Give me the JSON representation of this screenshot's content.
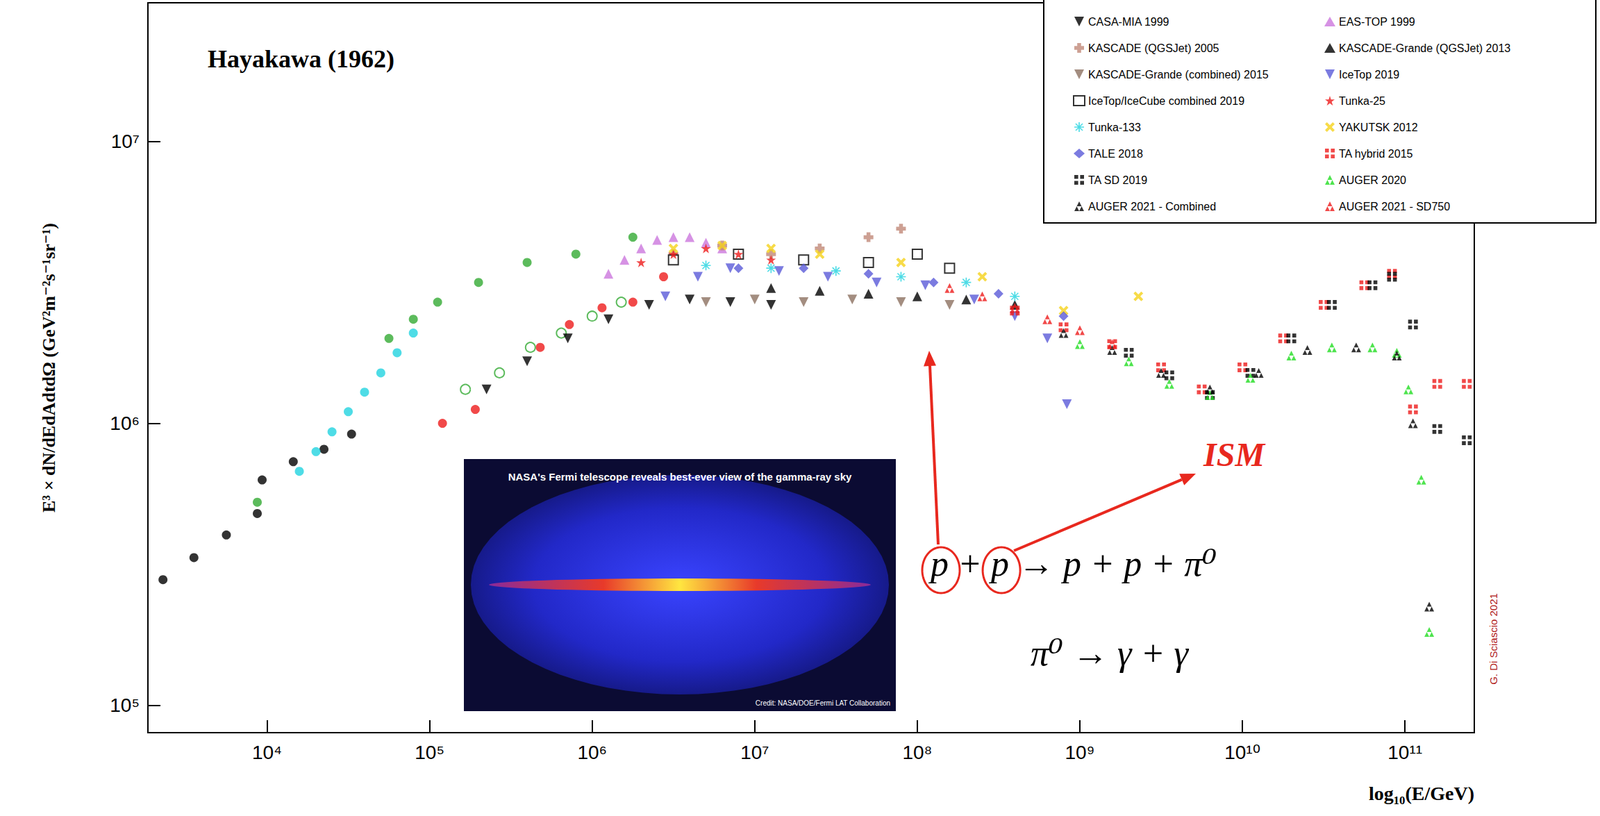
{
  "chart_data": {
    "type": "scatter",
    "title": "Hayakawa (1962)",
    "x_label": "log₁₀(E/GeV)",
    "y_label": "E³ × dN/dEdAdtdΩ (GeV²m⁻²s⁻¹sr⁻¹)",
    "log": true,
    "grid": false,
    "legend": "upper right",
    "xlim": [
      1850.0,
      267000000000.0
    ],
    "ylim": [
      80000.0,
      31000000.0
    ],
    "xticks": [
      {
        "value": 10000.0,
        "label": "10⁴"
      },
      {
        "value": 100000.0,
        "label": "10⁵"
      },
      {
        "value": 1000000.0,
        "label": "10⁶"
      },
      {
        "value": 10000000.0,
        "label": "10⁷"
      },
      {
        "value": 100000000.0,
        "label": "10⁸"
      },
      {
        "value": 1000000000.0,
        "label": "10⁹"
      },
      {
        "value": 10000000000.0,
        "label": "10¹⁰"
      },
      {
        "value": 100000000000.0,
        "label": "10¹¹"
      }
    ],
    "yticks": [
      {
        "value": 100000.0,
        "label": "10⁵"
      },
      {
        "value": 1000000.0,
        "label": "10⁶"
      },
      {
        "value": 10000000.0,
        "label": "10⁷"
      }
    ],
    "series": [
      {
        "color": "#000000",
        "marker": "circle",
        "x": [
          2290.0,
          3550.0,
          5620.0,
          8710.0,
          9330.0,
          14500.0,
          22400.0,
          33100.0
        ],
        "values": [
          279000.0,
          334000.0,
          402000.0,
          479000.0,
          630000.0,
          731000.0,
          809000.0,
          916000.0
        ]
      },
      {
        "color": "#22d3e0",
        "marker": "circle",
        "x": [
          15800.0,
          20000.0,
          25100.0,
          31600.0,
          39800.0,
          50100.0,
          63100.0,
          79400.0
        ],
        "values": [
          676000.0,
          794000.0,
          933000.0,
          1100000.0,
          1290000.0,
          1510000.0,
          1780000.0,
          2090000.0
        ]
      },
      {
        "color": "#33aa33",
        "marker": "circle",
        "x": [
          8710.0,
          56200.0,
          79400.0,
          112000.0,
          200000.0,
          398000.0,
          794000.0,
          1780000.0
        ],
        "values": [
          525000.0,
          2000000.0,
          2340000.0,
          2690000.0,
          3160000.0,
          3720000.0,
          3980000.0,
          4570000.0
        ]
      },
      {
        "color": "#ee1c1c",
        "marker": "circle",
        "x": [
          120000.0,
          191000.0,
          479000.0,
          724000.0,
          1150000.0,
          1780000.0,
          2750000.0
        ],
        "values": [
          1000000.0,
          1120000.0,
          1860000.0,
          2240000.0,
          2570000.0,
          2690000.0,
          3310000.0
        ]
      },
      {
        "color": "#33aa33",
        "marker": "circle_open",
        "x": [
          166000.0,
          269000.0,
          417000.0,
          646000.0,
          1000000.0,
          1510000.0
        ],
        "values": [
          1320000.0,
          1510000.0,
          1860000.0,
          2090000.0,
          2400000.0,
          2690000.0
        ]
      },
      {
        "name": "CASA-MIA 1999",
        "color": "#000000",
        "marker": "triangle_down",
        "x": [
          224000.0,
          398000.0,
          708000.0,
          1260000.0,
          2240000.0,
          3980000.0,
          7080000.0,
          12600000.0
        ],
        "values": [
          1320000.0,
          1660000.0,
          2000000.0,
          2340000.0,
          2630000.0,
          2750000.0,
          2690000.0,
          2630000.0
        ]
      },
      {
        "name": "EAS-TOP 1999",
        "color": "#cc77dd",
        "marker": "triangle",
        "x": [
          1260000.0,
          1580000.0,
          2000000.0,
          2510000.0,
          3160000.0,
          3980000.0,
          5010000.0,
          6310000.0
        ],
        "values": [
          3390000.0,
          3800000.0,
          4170000.0,
          4470000.0,
          4570000.0,
          4570000.0,
          4370000.0,
          4170000.0
        ]
      },
      {
        "name": "KASCADE (QGSJet) 2005",
        "color": "#c08878",
        "marker": "cross",
        "x": [
          3160000.0,
          6310000.0,
          12600000.0,
          25100000.0,
          50100000.0,
          79400000.0
        ],
        "values": [
          3980000.0,
          4270000.0,
          3980000.0,
          4170000.0,
          4570000.0,
          4900000.0
        ]
      },
      {
        "name": "KASCADE-Grande (QGSJet) 2013",
        "color": "#000000",
        "marker": "triangle",
        "x": [
          12600000.0,
          25100000.0,
          50100000.0,
          100000000.0,
          200000000.0,
          398000000.0
        ],
        "values": [
          3020000.0,
          2950000.0,
          2880000.0,
          2820000.0,
          2750000.0,
          2630000.0
        ]
      },
      {
        "name": "KASCADE-Grande (combined) 2015",
        "color": "#8c7060",
        "marker": "triangle_down",
        "x": [
          5010000.0,
          10000000.0,
          20000000.0,
          39800000.0,
          79400000.0,
          158000000.0
        ],
        "values": [
          2690000.0,
          2750000.0,
          2690000.0,
          2750000.0,
          2690000.0,
          2630000.0
        ]
      },
      {
        "name": "IceTop 2019",
        "color": "#5a5ad8",
        "marker": "triangle_down",
        "x": [
          2820000.0,
          4470000.0,
          7080000.0,
          14100000.0,
          28200000.0,
          56200000.0,
          112000000.0,
          224000000.0,
          398000000.0,
          631000000.0,
          832000000.0
        ],
        "values": [
          2820000.0,
          3310000.0,
          3550000.0,
          3470000.0,
          3310000.0,
          3160000.0,
          3090000.0,
          2750000.0,
          2400000.0,
          2000000.0,
          1170000.0
        ]
      },
      {
        "name": "IceTop/IceCube combined 2019",
        "color": "#000000",
        "marker": "square_open",
        "x": [
          3160000.0,
          7940000.0,
          20000000.0,
          50100000.0,
          100000000.0,
          158000000.0
        ],
        "values": [
          3800000.0,
          3980000.0,
          3800000.0,
          3720000.0,
          3980000.0,
          3550000.0
        ]
      },
      {
        "name": "Tunka-25",
        "color": "#ee1c1c",
        "marker": "star",
        "x": [
          2000000.0,
          3160000.0,
          5010000.0,
          7940000.0,
          12600000.0
        ],
        "values": [
          3720000.0,
          3980000.0,
          4170000.0,
          3980000.0,
          3800000.0
        ]
      },
      {
        "name": "Tunka-133",
        "color": "#22d3e0",
        "marker": "asterisk",
        "x": [
          5010000.0,
          12600000.0,
          31600000.0,
          79400000.0,
          200000000.0,
          398000000.0
        ],
        "values": [
          3630000.0,
          3550000.0,
          3470000.0,
          3310000.0,
          3160000.0,
          2820000.0
        ]
      },
      {
        "name": "YAKUTSK 2012",
        "color": "#f5d21a",
        "marker": "x",
        "x": [
          3160000.0,
          6310000.0,
          12600000.0,
          25100000.0,
          79400000.0,
          251000000.0,
          794000000.0,
          2290000000.0
        ],
        "values": [
          4170000.0,
          4270000.0,
          4170000.0,
          3980000.0,
          3720000.0,
          3310000.0,
          2510000.0,
          2820000.0
        ]
      },
      {
        "name": "TALE 2018",
        "color": "#5a5ad8",
        "marker": "diamond",
        "x": [
          7940000.0,
          20000000.0,
          50100000.0,
          126000000.0,
          316000000.0,
          794000000.0
        ],
        "values": [
          3550000.0,
          3550000.0,
          3390000.0,
          3160000.0,
          2880000.0,
          2400000.0
        ]
      },
      {
        "name": "TA hybrid 2015",
        "color": "#ee1c1c",
        "marker": "four_dots",
        "x": [
          398000000.0,
          794000000.0,
          1580000000.0,
          3160000000.0,
          5620000000.0,
          10000000000.0,
          17800000000.0,
          31600000000.0,
          56200000000.0,
          83200000000.0,
          112000000000.0,
          158000000000.0,
          240000000000.0
        ],
        "values": [
          2510000.0,
          2190000.0,
          1910000.0,
          1580000.0,
          1320000.0,
          1580000.0,
          2000000.0,
          2630000.0,
          3090000.0,
          3390000.0,
          1120000.0,
          1380000.0,
          1380000.0
        ]
      },
      {
        "name": "TA SD 2019",
        "color": "#000000",
        "marker": "four_dots",
        "x": [
          2000000000.0,
          3550000000.0,
          6310000000.0,
          11200000000.0,
          20000000000.0,
          35500000000.0,
          63100000000.0,
          83200000000.0,
          112000000000.0,
          158000000000.0,
          240000000000.0
        ],
        "values": [
          1780000.0,
          1480000.0,
          1260000.0,
          1510000.0,
          2000000.0,
          2630000.0,
          3090000.0,
          3310000.0,
          2240000.0,
          955000.0,
          871000.0
        ]
      },
      {
        "name": "AUGER 2020",
        "color": "#22dd22",
        "marker": "triangle_pair",
        "x": [
          1000000000.0,
          2000000000.0,
          3550000000.0,
          6310000000.0,
          11200000000.0,
          20000000000.0,
          35500000000.0,
          63100000000.0,
          89100000000.0,
          105000000000.0,
          126000000000.0,
          141000000000.0
        ],
        "values": [
          1910000.0,
          1660000.0,
          1380000.0,
          1260000.0,
          1450000.0,
          1740000.0,
          1860000.0,
          1860000.0,
          1780000.0,
          1320000.0,
          631000.0,
          182000.0
        ]
      },
      {
        "name": "AUGER 2021 - Combined",
        "color": "#000000",
        "marker": "triangle_pair",
        "x": [
          794000000.0,
          1580000000.0,
          3160000000.0,
          6310000000.0,
          12600000000.0,
          25100000000.0,
          50100000000.0,
          89100000000.0,
          112000000000.0,
          141000000000.0
        ],
        "values": [
          2090000.0,
          1820000.0,
          1510000.0,
          1320000.0,
          1510000.0,
          1820000.0,
          1860000.0,
          1740000.0,
          1000000.0,
          224000.0
        ]
      },
      {
        "name": "AUGER 2021 - SD750",
        "color": "#ee1c1c",
        "marker": "triangle_pair",
        "x": [
          158000000.0,
          251000000.0,
          398000000.0,
          631000000.0,
          1000000000.0,
          1580000000.0
        ],
        "values": [
          3020000.0,
          2820000.0,
          2570000.0,
          2340000.0,
          2140000.0,
          1910000.0
        ]
      }
    ],
    "annotations": {
      "reaction": "p + p → p + p + π⁰",
      "decay": "π⁰ → γ + γ",
      "target": "ISM",
      "credit": "G. Di Sciascio 2021"
    },
    "inset": {
      "title": "NASA's Fermi telescope reveals best-ever view of the gamma-ray sky",
      "credit": "Credit: NASA/DOE/Fermi LAT Collaboration"
    }
  }
}
